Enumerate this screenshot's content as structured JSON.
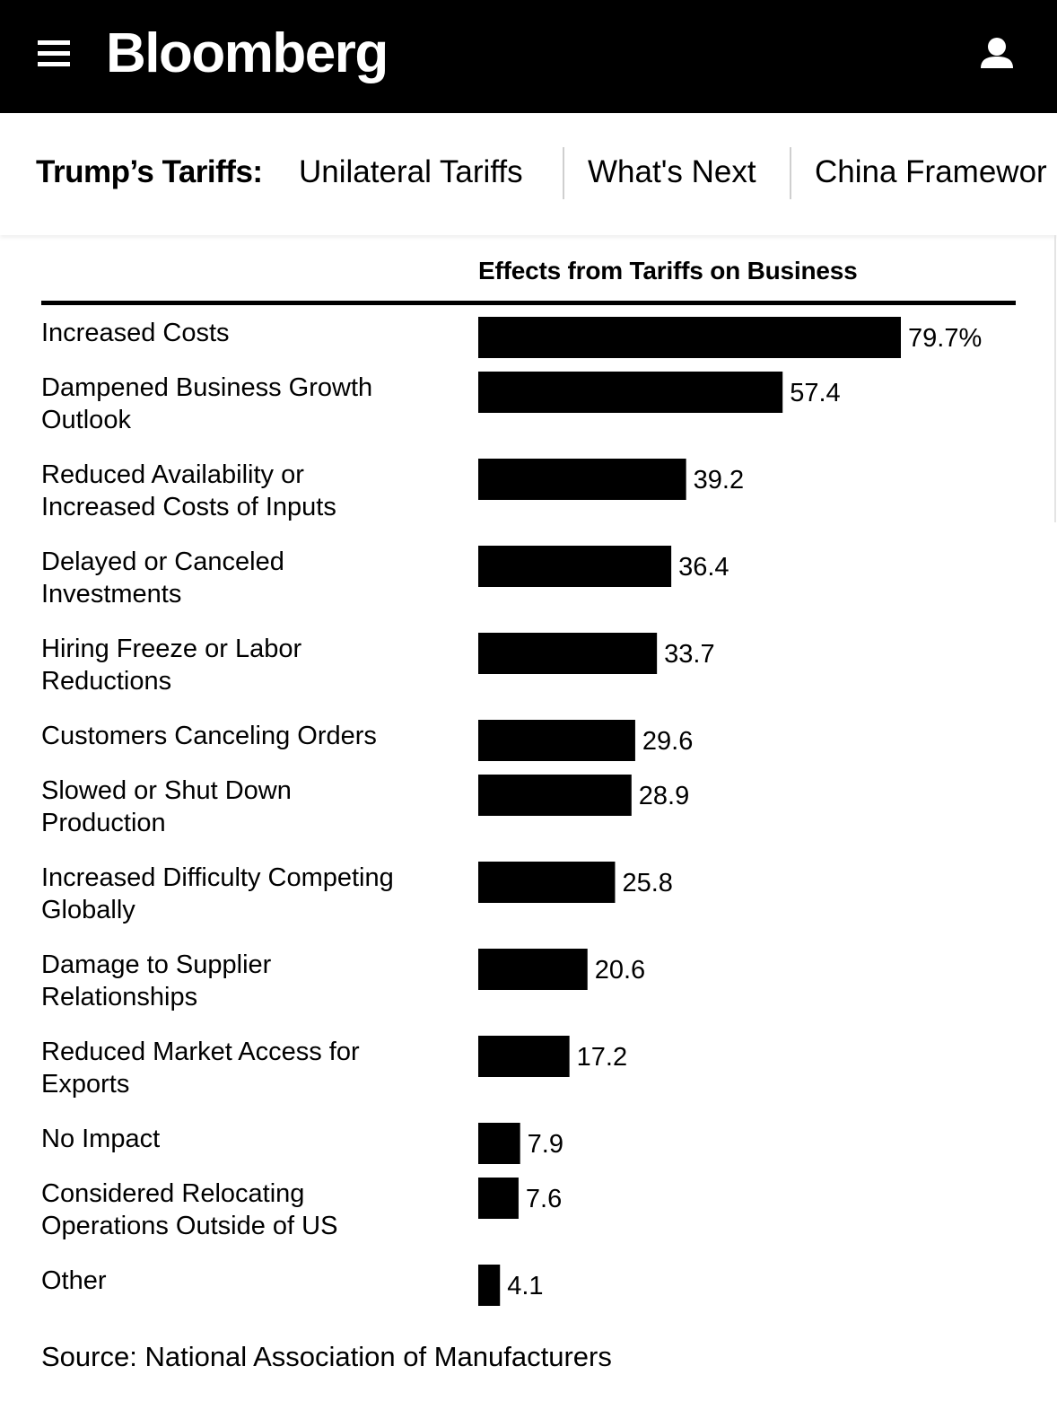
{
  "header": {
    "logo": "Bloomberg",
    "menu_icon": "hamburger-menu-icon",
    "user_icon": "user-profile-icon"
  },
  "nav": {
    "title": "Trump’s Tariffs:",
    "links": [
      "Unilateral Tariffs",
      "What's Next",
      "China Framewor"
    ]
  },
  "colors": {
    "bar": "#000000",
    "header_bg": "#000000"
  },
  "chart_data": {
    "type": "bar",
    "orientation": "horizontal",
    "title": "Effects from Tariffs on Business",
    "categories": [
      "Increased Costs",
      "Dampened Business Growth\nOutlook",
      "Reduced Availability or\nIncreased Costs of Inputs",
      "Delayed or Canceled\nInvestments",
      "Hiring Freeze or Labor\nReductions",
      "Customers Canceling Orders",
      "Slowed or Shut Down\nProduction",
      "Increased Difficulty Competing\nGlobally",
      "Damage to Supplier\nRelationships",
      "Reduced Market Access for\nExports",
      "No Impact",
      "Considered Relocating\nOperations Outside of US",
      "Other"
    ],
    "values": [
      79.7,
      57.4,
      39.2,
      36.4,
      33.7,
      29.6,
      28.9,
      25.8,
      20.6,
      17.2,
      7.9,
      7.6,
      4.1
    ],
    "value_labels": [
      "79.7%",
      "57.4",
      "39.2",
      "36.4",
      "33.7",
      "29.6",
      "28.9",
      "25.8",
      "20.6",
      "17.2",
      "7.9",
      "7.6",
      "4.1"
    ],
    "unit": "%",
    "grid": false,
    "legend": "none"
  },
  "source": "Source: National Association of Manufacturers"
}
